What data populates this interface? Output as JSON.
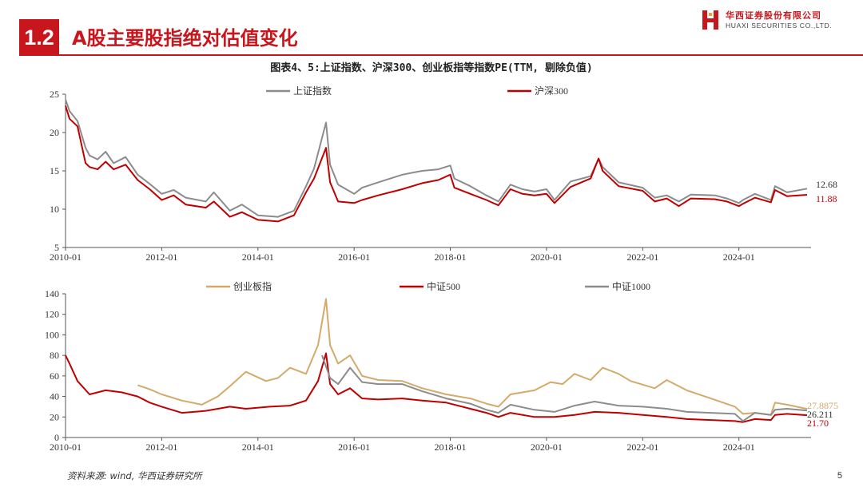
{
  "header": {
    "section_number": "1.2",
    "title": "A股主要股指绝对估值变化",
    "brand_cn": "华西证券股份有限公司",
    "brand_en": "HUAXI SECURITIES CO.,LTD."
  },
  "caption": "图表4、5:上证指数、沪深300、创业板指等指数PE(TTM, 剔除负值)",
  "footer": {
    "source": "资料来源: wind, 华西证券研究所",
    "page": "5"
  },
  "colors": {
    "brand_red": "#c8161d",
    "gray": "#8c8c8c",
    "red": "#c00000",
    "tan": "#d4aa6a"
  },
  "chart_data": [
    {
      "type": "line",
      "xlim": [
        "2010-01",
        "2025-07"
      ],
      "x_ticks": [
        "2010-01",
        "2012-01",
        "2014-01",
        "2016-01",
        "2018-01",
        "2020-01",
        "2022-01",
        "2024-01"
      ],
      "ylim": [
        5,
        25
      ],
      "y_ticks": [
        5,
        10,
        15,
        20,
        25
      ],
      "legend_position": "top",
      "end_labels": [
        {
          "series": "上证指数",
          "text": "12.68"
        },
        {
          "series": "沪深300",
          "text": "11.88"
        }
      ],
      "series": [
        {
          "name": "上证指数",
          "color": "#8c8c8c",
          "x": [
            "2010-01",
            "2010-02",
            "2010-04",
            "2010-06",
            "2010-07",
            "2010-09",
            "2010-11",
            "2011-01",
            "2011-04",
            "2011-07",
            "2011-10",
            "2012-01",
            "2012-04",
            "2012-07",
            "2012-12",
            "2013-02",
            "2013-06",
            "2013-09",
            "2014-01",
            "2014-06",
            "2014-10",
            "2015-01",
            "2015-03",
            "2015-06",
            "2015-07",
            "2015-09",
            "2016-01",
            "2016-03",
            "2016-07",
            "2017-01",
            "2017-06",
            "2017-10",
            "2018-01",
            "2018-02",
            "2018-06",
            "2018-10",
            "2019-01",
            "2019-04",
            "2019-07",
            "2019-10",
            "2020-01",
            "2020-03",
            "2020-07",
            "2020-12",
            "2021-02",
            "2021-03",
            "2021-07",
            "2022-01",
            "2022-04",
            "2022-07",
            "2022-10",
            "2023-01",
            "2023-07",
            "2023-10",
            "2024-01",
            "2024-02",
            "2024-05",
            "2024-09",
            "2024-10",
            "2025-01",
            "2025-06"
          ],
          "y": [
            24.3,
            22.8,
            21.5,
            18.0,
            17.0,
            16.5,
            17.5,
            16.0,
            16.8,
            14.5,
            13.3,
            12.0,
            12.5,
            11.5,
            11.0,
            12.2,
            9.8,
            10.6,
            9.2,
            9.0,
            9.8,
            13.0,
            15.3,
            21.3,
            15.8,
            13.2,
            12.0,
            12.8,
            13.5,
            14.5,
            15.0,
            15.2,
            15.7,
            14.0,
            13.0,
            11.8,
            11.0,
            13.2,
            12.6,
            12.3,
            12.6,
            11.2,
            13.6,
            14.3,
            16.6,
            15.5,
            13.5,
            12.8,
            11.5,
            11.8,
            11.0,
            11.9,
            11.8,
            11.4,
            10.8,
            11.2,
            12.0,
            11.2,
            13.0,
            12.2,
            12.68
          ]
        },
        {
          "name": "沪深300",
          "color": "#c00000",
          "x": [
            "2010-01",
            "2010-02",
            "2010-04",
            "2010-06",
            "2010-07",
            "2010-09",
            "2010-11",
            "2011-01",
            "2011-04",
            "2011-07",
            "2011-10",
            "2012-01",
            "2012-04",
            "2012-07",
            "2012-12",
            "2013-02",
            "2013-06",
            "2013-09",
            "2014-01",
            "2014-06",
            "2014-10",
            "2015-01",
            "2015-03",
            "2015-06",
            "2015-07",
            "2015-09",
            "2016-01",
            "2016-03",
            "2016-07",
            "2017-01",
            "2017-06",
            "2017-10",
            "2018-01",
            "2018-02",
            "2018-06",
            "2018-10",
            "2019-01",
            "2019-04",
            "2019-07",
            "2019-10",
            "2020-01",
            "2020-03",
            "2020-07",
            "2020-12",
            "2021-02",
            "2021-03",
            "2021-07",
            "2022-01",
            "2022-04",
            "2022-07",
            "2022-10",
            "2023-01",
            "2023-07",
            "2023-10",
            "2024-01",
            "2024-02",
            "2024-05",
            "2024-09",
            "2024-10",
            "2025-01",
            "2025-06"
          ],
          "y": [
            23.5,
            21.8,
            20.8,
            16.0,
            15.5,
            15.2,
            16.2,
            15.2,
            15.8,
            13.8,
            12.6,
            11.2,
            11.8,
            10.6,
            10.2,
            11.0,
            9.0,
            9.6,
            8.6,
            8.4,
            9.2,
            12.2,
            14.0,
            18.0,
            13.5,
            11.0,
            10.8,
            11.2,
            11.8,
            12.6,
            13.4,
            13.8,
            14.5,
            12.8,
            12.0,
            11.2,
            10.5,
            12.6,
            12.0,
            11.8,
            12.0,
            10.8,
            12.9,
            14.0,
            16.6,
            15.0,
            13.0,
            12.4,
            11.0,
            11.4,
            10.4,
            11.4,
            11.3,
            11.0,
            10.4,
            10.7,
            11.5,
            10.9,
            12.5,
            11.7,
            11.88
          ]
        }
      ]
    },
    {
      "type": "line",
      "xlim": [
        "2010-01",
        "2025-07"
      ],
      "x_ticks": [
        "2010-01",
        "2012-01",
        "2014-01",
        "2016-01",
        "2018-01",
        "2020-01",
        "2022-01",
        "2024-01"
      ],
      "ylim": [
        0,
        140
      ],
      "y_ticks": [
        0,
        20,
        40,
        60,
        80,
        100,
        120,
        140
      ],
      "legend_position": "top",
      "end_labels": [
        {
          "series": "创业板指",
          "text": "27.8875"
        },
        {
          "series": "中证1000",
          "text": "26.211"
        },
        {
          "series": "中证500",
          "text": "21.70"
        }
      ],
      "series": [
        {
          "name": "创业板指",
          "color": "#d4aa6a",
          "x": [
            "2011-07",
            "2011-10",
            "2012-01",
            "2012-06",
            "2012-11",
            "2013-03",
            "2013-06",
            "2013-10",
            "2014-03",
            "2014-06",
            "2014-09",
            "2015-01",
            "2015-04",
            "2015-06",
            "2015-07",
            "2015-09",
            "2015-12",
            "2016-03",
            "2016-07",
            "2017-01",
            "2017-06",
            "2017-12",
            "2018-06",
            "2018-10",
            "2019-01",
            "2019-04",
            "2019-10",
            "2020-02",
            "2020-05",
            "2020-08",
            "2020-12",
            "2021-03",
            "2021-07",
            "2021-10",
            "2022-04",
            "2022-07",
            "2022-12",
            "2023-06",
            "2023-12",
            "2024-02",
            "2024-05",
            "2024-09",
            "2024-10",
            "2025-01",
            "2025-06"
          ],
          "y": [
            51,
            47,
            42,
            36,
            32,
            40,
            50,
            64,
            55,
            58,
            68,
            62,
            90,
            135,
            90,
            72,
            80,
            60,
            56,
            55,
            48,
            42,
            38,
            33,
            30,
            42,
            46,
            54,
            52,
            62,
            56,
            68,
            62,
            55,
            48,
            56,
            46,
            38,
            30,
            23,
            24,
            22,
            34,
            32,
            27.9
          ]
        },
        {
          "name": "中证500",
          "color": "#c00000",
          "x": [
            "2010-01",
            "2010-02",
            "2010-04",
            "2010-07",
            "2010-11",
            "2011-03",
            "2011-07",
            "2011-10",
            "2012-01",
            "2012-06",
            "2012-12",
            "2013-06",
            "2013-10",
            "2014-04",
            "2014-09",
            "2015-01",
            "2015-04",
            "2015-06",
            "2015-07",
            "2015-09",
            "2015-12",
            "2016-03",
            "2016-07",
            "2017-01",
            "2017-06",
            "2017-12",
            "2018-06",
            "2018-10",
            "2019-01",
            "2019-04",
            "2019-10",
            "2020-03",
            "2020-08",
            "2021-01",
            "2021-07",
            "2022-01",
            "2022-07",
            "2022-12",
            "2023-06",
            "2023-12",
            "2024-02",
            "2024-05",
            "2024-09",
            "2024-10",
            "2025-01",
            "2025-06"
          ],
          "y": [
            80,
            72,
            55,
            42,
            46,
            44,
            40,
            34,
            30,
            24,
            26,
            30,
            28,
            30,
            31,
            36,
            55,
            82,
            52,
            42,
            48,
            38,
            37,
            38,
            36,
            34,
            28,
            24,
            20,
            24,
            20,
            20,
            22,
            25,
            24,
            22,
            20,
            18,
            17,
            16,
            15,
            18,
            17,
            22,
            23,
            21.7
          ]
        },
        {
          "name": "中证1000",
          "color": "#8c8c8c",
          "x": [
            "2015-05",
            "2015-07",
            "2015-09",
            "2015-12",
            "2016-03",
            "2016-07",
            "2017-01",
            "2017-06",
            "2017-12",
            "2018-06",
            "2018-10",
            "2019-01",
            "2019-04",
            "2019-10",
            "2020-03",
            "2020-08",
            "2021-01",
            "2021-07",
            "2022-01",
            "2022-07",
            "2022-12",
            "2023-06",
            "2023-12",
            "2024-02",
            "2024-05",
            "2024-09",
            "2024-10",
            "2025-01",
            "2025-06"
          ],
          "y": [
            80,
            58,
            52,
            68,
            54,
            52,
            52,
            45,
            38,
            33,
            27,
            24,
            32,
            27,
            25,
            31,
            35,
            31,
            30,
            28,
            25,
            24,
            23,
            16,
            24,
            22,
            27,
            28,
            26.2
          ]
        }
      ]
    }
  ]
}
